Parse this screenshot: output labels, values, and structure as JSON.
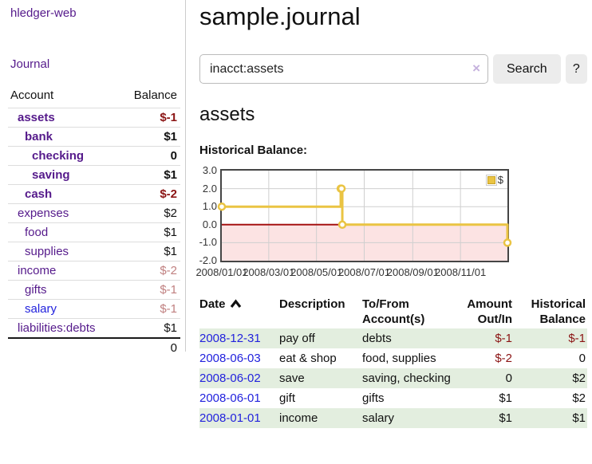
{
  "app": {
    "brand": "hledger-web"
  },
  "sidebar": {
    "journal_label": "Journal",
    "accounts": {
      "header_account": "Account",
      "header_balance": "Balance",
      "rows": [
        {
          "name": "assets",
          "balance": "$-1"
        },
        {
          "name": "bank",
          "balance": "$1"
        },
        {
          "name": "checking",
          "balance": "0"
        },
        {
          "name": "saving",
          "balance": "$1"
        },
        {
          "name": "cash",
          "balance": "$-2"
        },
        {
          "name": "expenses",
          "balance": "$2"
        },
        {
          "name": "food",
          "balance": "$1"
        },
        {
          "name": "supplies",
          "balance": "$1"
        },
        {
          "name": "income",
          "balance": "$-2"
        },
        {
          "name": "gifts",
          "balance": "$-1"
        },
        {
          "name": "salary",
          "balance": "$-1"
        },
        {
          "name": "liabilities:debts",
          "balance": "$1"
        }
      ],
      "total": "0"
    }
  },
  "main": {
    "title": "sample.journal",
    "search": {
      "value": "inacct:assets",
      "clear_icon": "×",
      "search_button": "Search",
      "help_button": "?"
    },
    "account_heading": "assets"
  },
  "chart_data": {
    "type": "line",
    "step": true,
    "title": "Historical Balance:",
    "series": [
      {
        "name": "$",
        "color": "#eac443",
        "points": [
          [
            "2008-01-01",
            1
          ],
          [
            "2008-06-01",
            2
          ],
          [
            "2008-06-02",
            2
          ],
          [
            "2008-06-03",
            0
          ],
          [
            "2008-12-31",
            -1
          ]
        ]
      }
    ],
    "xlim": [
      "2008-01-01",
      "2008-12-31"
    ],
    "ylim": [
      -2,
      3
    ],
    "x_ticks": [
      {
        "date": "2008-01-01",
        "label": "2008/01/01"
      },
      {
        "date": "2008-03-01",
        "label": "2008/03/01"
      },
      {
        "date": "2008-05-01",
        "label": "2008/05/01"
      },
      {
        "date": "2008-07-01",
        "label": "2008/07/01"
      },
      {
        "date": "2008-09-01",
        "label": "2008/09/01"
      },
      {
        "date": "2008-11-01",
        "label": "2008/11/01"
      }
    ],
    "y_ticks": [
      {
        "value": 3,
        "label": "3.0"
      },
      {
        "value": 2,
        "label": "2.0"
      },
      {
        "value": 1,
        "label": "1.0"
      },
      {
        "value": 0,
        "label": "0.0"
      },
      {
        "value": -1,
        "label": "-1.0"
      },
      {
        "value": -2,
        "label": "-2.0"
      }
    ],
    "legend": [
      {
        "label": "$",
        "color": "#eac443"
      }
    ],
    "legend_position": "top-right",
    "grid": true,
    "colors": {
      "line": "#eac443",
      "negative_fill": "#fce3e3",
      "zero_line": "#a51212",
      "grid": "#cfcfcf",
      "border": "#454545"
    }
  },
  "register": {
    "headers": {
      "date": "Date",
      "description": "Description",
      "accounts": "To/From Account(s)",
      "amount": "Amount Out/In",
      "balance": "Historical Balance"
    },
    "rows": [
      {
        "date": "2008-12-31",
        "description": "pay off",
        "accounts": "debts",
        "amount": "$-1",
        "balance": "$-1"
      },
      {
        "date": "2008-06-03",
        "description": "eat & shop",
        "accounts": "food, supplies",
        "amount": "$-2",
        "balance": "0"
      },
      {
        "date": "2008-06-02",
        "description": "save",
        "accounts": "saving, checking",
        "amount": "0",
        "balance": "$2"
      },
      {
        "date": "2008-06-01",
        "description": "gift",
        "accounts": "gifts",
        "amount": "$1",
        "balance": "$2"
      },
      {
        "date": "2008-01-01",
        "description": "income",
        "accounts": "salary",
        "amount": "$1",
        "balance": "$1"
      }
    ]
  }
}
